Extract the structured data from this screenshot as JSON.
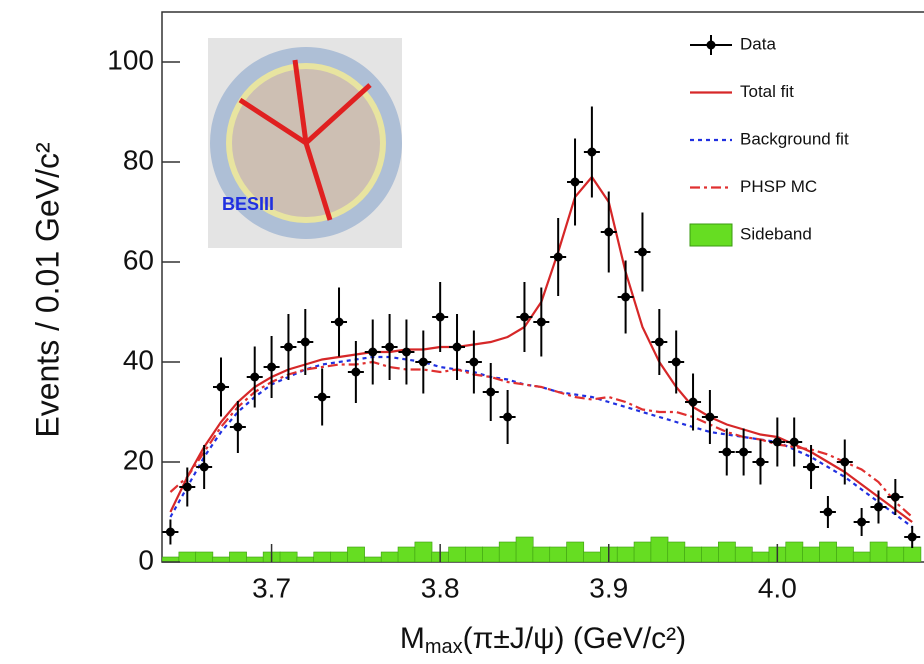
{
  "chart_data": {
    "type": "line",
    "xlabel": {
      "base": "M",
      "sub": "max",
      "rest": "(π±J/ψ) (GeV/c²)"
    },
    "ylabel": "Events / 0.01 GeV/c²",
    "inset_label": "BESIII",
    "legend": "upper right",
    "xlim": [
      3.635,
      4.087
    ],
    "ylim": [
      0,
      110
    ],
    "xticks": [
      3.7,
      3.8,
      3.9,
      {
        "value": 4,
        "label": "4.0"
      }
    ],
    "yticks": [
      0,
      20,
      40,
      60,
      80,
      100
    ],
    "x": [
      3.64,
      3.65,
      3.66,
      3.67,
      3.68,
      3.69,
      3.7,
      3.71,
      3.72,
      3.73,
      3.74,
      3.75,
      3.76,
      3.77,
      3.78,
      3.79,
      3.8,
      3.81,
      3.82,
      3.83,
      3.84,
      3.85,
      3.86,
      3.87,
      3.88,
      3.89,
      3.9,
      3.91,
      3.92,
      3.93,
      3.94,
      3.95,
      3.96,
      3.97,
      3.98,
      3.99,
      4.0,
      4.01,
      4.02,
      4.03,
      4.04,
      4.05,
      4.06,
      4.07,
      4.08
    ],
    "series": [
      {
        "name": "Data",
        "style": "points",
        "color": "#000000",
        "values": [
          6,
          15,
          19,
          35,
          27,
          37,
          39,
          43,
          44,
          33,
          48,
          38,
          42,
          43,
          42,
          40,
          49,
          43,
          40,
          34,
          29,
          49,
          48,
          61,
          76,
          82,
          66,
          53,
          62,
          44,
          40,
          32,
          29,
          22,
          22,
          20,
          24,
          24,
          19,
          10,
          20,
          8,
          11,
          13,
          5
        ],
        "errors": [
          2.5,
          3.9,
          4.4,
          5.9,
          5.2,
          6.1,
          6.2,
          6.6,
          6.6,
          5.7,
          6.9,
          6.2,
          6.5,
          6.6,
          6.5,
          6.3,
          7,
          6.6,
          6.3,
          5.8,
          5.4,
          7,
          6.9,
          7.8,
          8.7,
          9.1,
          8.1,
          7.3,
          7.9,
          6.6,
          6.3,
          5.7,
          5.4,
          4.7,
          4.7,
          4.5,
          4.9,
          4.9,
          4.4,
          3.2,
          4.5,
          2.8,
          3.3,
          3.6,
          2.2
        ]
      },
      {
        "name": "Total fit",
        "style": "solid",
        "color": "#d62728",
        "values": [
          10,
          17,
          23,
          28,
          32,
          35,
          37,
          38.5,
          39.5,
          40.5,
          41,
          41.5,
          42,
          42,
          42.5,
          42.5,
          43,
          43,
          43.5,
          44,
          45,
          47,
          52,
          62,
          73,
          77,
          72,
          58,
          47,
          40,
          35,
          31,
          29,
          27.5,
          26.5,
          25.5,
          25,
          23.5,
          22,
          20,
          18,
          15.5,
          13,
          10.5,
          8
        ]
      },
      {
        "name": "Background fit",
        "style": "dotted",
        "color": "#2030e0",
        "values": [
          9,
          15,
          21,
          26,
          30,
          33,
          35.5,
          37,
          38.5,
          39.5,
          40,
          40.5,
          41,
          41,
          40.5,
          40,
          39,
          38.5,
          38,
          37,
          36.5,
          35.5,
          35,
          34,
          33.5,
          33,
          32,
          31,
          30,
          29,
          28,
          27,
          26,
          25.5,
          25,
          24.5,
          24,
          22.5,
          21,
          19,
          17,
          14.5,
          12,
          9.5,
          7
        ]
      },
      {
        "name": "PHSP MC",
        "style": "dashdot",
        "color": "#e03030",
        "values": [
          14,
          17,
          22,
          27,
          31,
          34,
          36,
          37.5,
          38.5,
          39,
          39.5,
          39.5,
          40,
          39,
          38.5,
          38.5,
          38,
          38.5,
          37.5,
          37,
          36,
          35.5,
          35,
          34,
          33,
          32.5,
          33,
          32,
          30.5,
          30,
          30,
          29,
          27.5,
          26,
          25,
          24.5,
          23.5,
          23,
          22.5,
          21.5,
          20,
          18.5,
          16,
          12,
          9
        ]
      },
      {
        "name": "Sideband",
        "style": "histogram",
        "color": "#66dd22",
        "bins": [
          3.635,
          3.645,
          3.655,
          3.665,
          3.675,
          3.685,
          3.695,
          3.705,
          3.715,
          3.725,
          3.735,
          3.745,
          3.755,
          3.765,
          3.775,
          3.785,
          3.795,
          3.805,
          3.815,
          3.825,
          3.835,
          3.845,
          3.855,
          3.865,
          3.875,
          3.885,
          3.895,
          3.905,
          3.915,
          3.925,
          3.935,
          3.945,
          3.955,
          3.965,
          3.975,
          3.985,
          3.995,
          4.005,
          4.015,
          4.025,
          4.035,
          4.045,
          4.055,
          4.065,
          4.075,
          4.085
        ],
        "values": [
          1,
          2,
          2,
          1,
          2,
          1,
          2,
          2,
          1,
          2,
          2,
          3,
          1,
          2,
          3,
          4,
          2,
          3,
          3,
          3,
          4,
          5,
          3,
          3,
          4,
          2,
          3,
          3,
          4,
          5,
          4,
          3,
          3,
          4,
          3,
          2,
          3,
          4,
          3,
          4,
          3,
          2,
          4,
          3,
          3
        ]
      }
    ]
  }
}
